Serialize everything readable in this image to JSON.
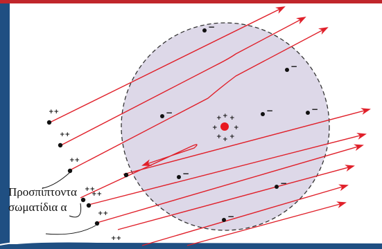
{
  "caption": {
    "line1": "Προσπίπτοντα",
    "line2": "σωματίδια α"
  },
  "symbols": {
    "electron_charge": "−",
    "alpha_charge": "++",
    "nucleus_charge": "+"
  },
  "colors": {
    "background_frame": "#1f4f82",
    "top_border": "#c0262b",
    "paper": "#ffffff",
    "atom_fill": "#ddd8e8",
    "track": "#e0202a",
    "nucleus": "#e8181f",
    "particle": "#111111"
  },
  "counts": {
    "electrons": 9,
    "alpha_particles": 10,
    "tracks": 11
  }
}
